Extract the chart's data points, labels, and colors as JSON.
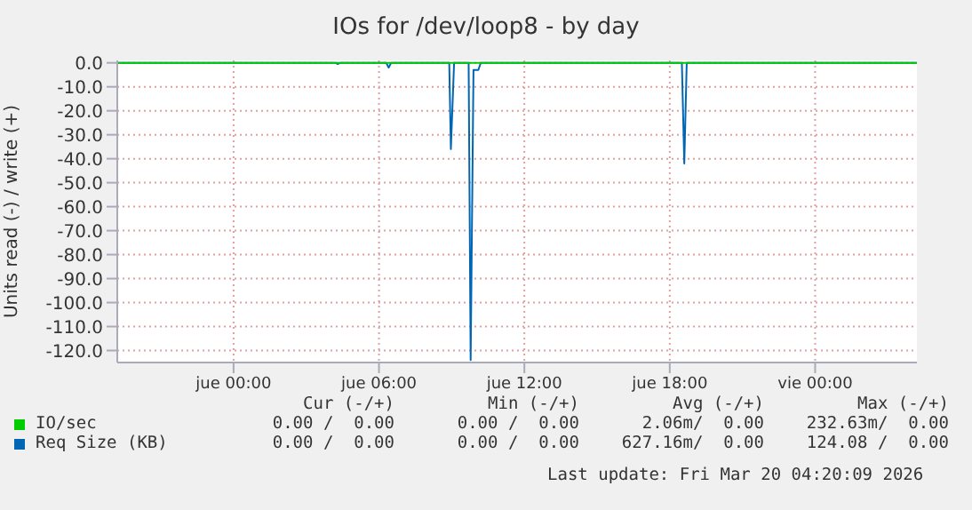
{
  "chart_data": {
    "type": "line",
    "title": "IOs for /dev/loop8 - by day",
    "ylabel": "Units read (-) / write (+)",
    "xlim": [
      "2026-03-18T19:12",
      "2026-03-20T04:12"
    ],
    "xticks": [
      {
        "value": "2026-03-19T00:00",
        "label": "jue 00:00"
      },
      {
        "value": "2026-03-19T06:00",
        "label": "jue 06:00"
      },
      {
        "value": "2026-03-19T12:00",
        "label": "jue 12:00"
      },
      {
        "value": "2026-03-19T18:00",
        "label": "jue 18:00"
      },
      {
        "value": "2026-03-20T00:00",
        "label": "vie 00:00"
      }
    ],
    "ylim": [
      -125,
      1
    ],
    "yticks": [
      {
        "value": 0,
        "label": "0.0"
      },
      {
        "value": -10,
        "label": "-10.0"
      },
      {
        "value": -20,
        "label": "-20.0"
      },
      {
        "value": -30,
        "label": "-30.0"
      },
      {
        "value": -40,
        "label": "-40.0"
      },
      {
        "value": -50,
        "label": "-50.0"
      },
      {
        "value": -60,
        "label": "-60.0"
      },
      {
        "value": -70,
        "label": "-70.0"
      },
      {
        "value": -80,
        "label": "-80.0"
      },
      {
        "value": -90,
        "label": "-90.0"
      },
      {
        "value": -100,
        "label": "-100.0"
      },
      {
        "value": -110,
        "label": "-110.0"
      },
      {
        "value": -120,
        "label": "-120.0"
      }
    ],
    "grid": true,
    "legend": "bottom",
    "marker": "none",
    "series": [
      {
        "name": "Req Size (KB)",
        "color": "#0066b3",
        "x": [
          "2026-03-18T19:12",
          "2026-03-19T04:12",
          "2026-03-19T04:18",
          "2026-03-19T04:24",
          "2026-03-19T06:18",
          "2026-03-19T06:24",
          "2026-03-19T06:30",
          "2026-03-19T08:54",
          "2026-03-19T08:58",
          "2026-03-19T09:06",
          "2026-03-19T09:42",
          "2026-03-19T09:47",
          "2026-03-19T09:54",
          "2026-03-19T10:06",
          "2026-03-19T10:12",
          "2026-03-19T18:30",
          "2026-03-19T18:36",
          "2026-03-19T18:42",
          "2026-03-20T04:12"
        ],
        "values": [
          0,
          0,
          -0.5,
          0,
          0,
          -2,
          0,
          0,
          -36,
          0,
          0,
          -124,
          -3,
          -3,
          0,
          0,
          -42,
          0,
          0
        ]
      },
      {
        "name": "IO/sec",
        "color": "#00cc00",
        "x": [
          "2026-03-18T19:12",
          "2026-03-20T04:12"
        ],
        "values": [
          0,
          0
        ]
      }
    ],
    "annotations": [
      "Cur (-/+)",
      "Min (-/+)",
      "Avg (-/+)",
      "Max (-/+)",
      "0.00 /  0.00",
      "0.00 /  0.00",
      "627.16m/  0.00",
      "124.08 /  0.00",
      "0.00 /  0.00",
      "0.00 /  0.00",
      "2.06m/  0.00",
      "232.63m/  0.00",
      "Last update: Fri Mar 20 04:20:09 2026"
    ]
  }
}
